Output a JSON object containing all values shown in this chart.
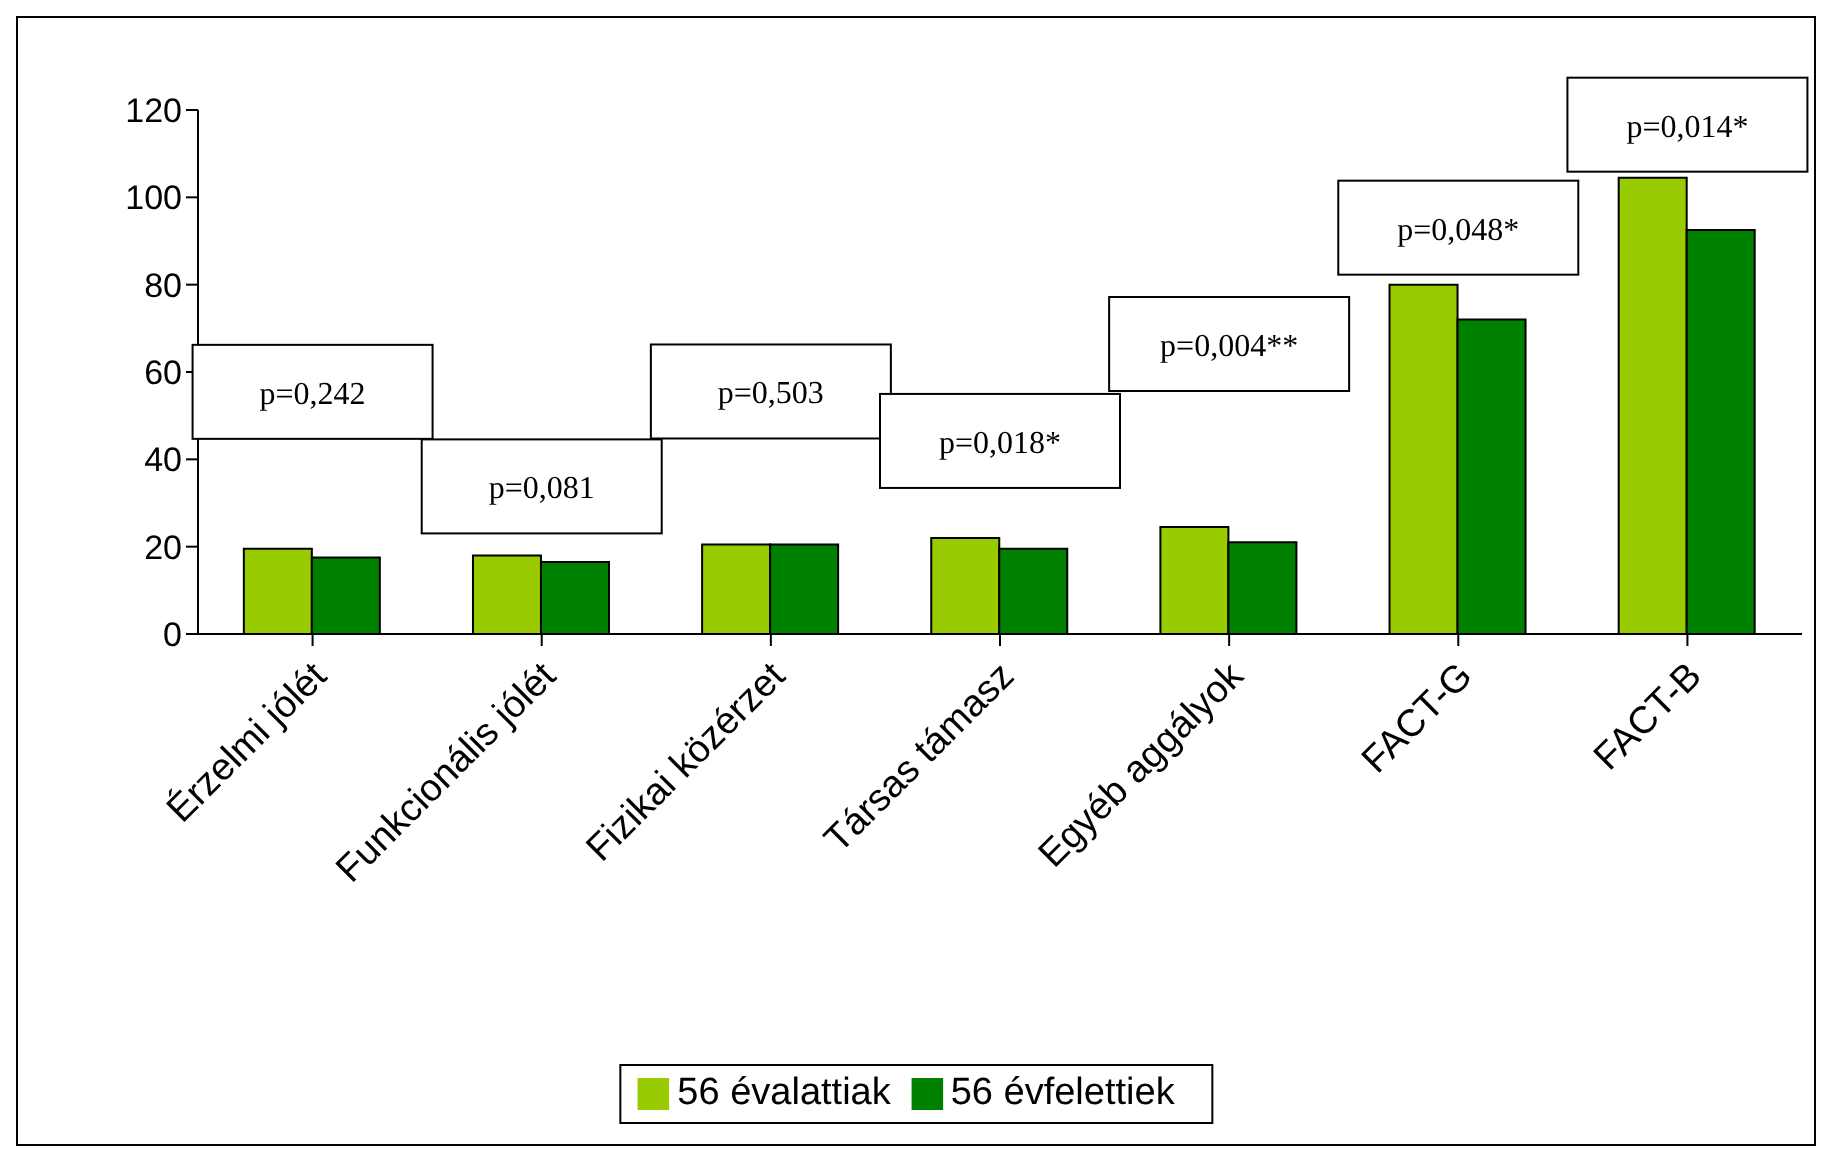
{
  "chart_data": {
    "type": "bar",
    "categories": [
      "Érzelmi jólét",
      "Funkcionális jólét",
      "Fizikai közérzet",
      "Társas támasz",
      "Egyéb aggályok",
      "FACT-G",
      "FACT-B"
    ],
    "series": [
      {
        "name": "56 évalattiak",
        "color": "#99cc00",
        "values": [
          19.5,
          18,
          20.5,
          22,
          24.5,
          80,
          104.5
        ]
      },
      {
        "name": "56 évfelettiek",
        "color": "#008000",
        "values": [
          17.5,
          16.5,
          20.5,
          19.5,
          21,
          72,
          92.5
        ]
      }
    ],
    "ylim": [
      0,
      120
    ],
    "yticks": [
      0,
      20,
      40,
      60,
      80,
      100,
      120
    ],
    "grid": false,
    "legend": "bottom",
    "annotations": [
      "p=0,242",
      "p=0,081",
      "p=0,503",
      "p=0,018*",
      "p=0,004**",
      "p=0,048*",
      "p=0,014*"
    ]
  }
}
